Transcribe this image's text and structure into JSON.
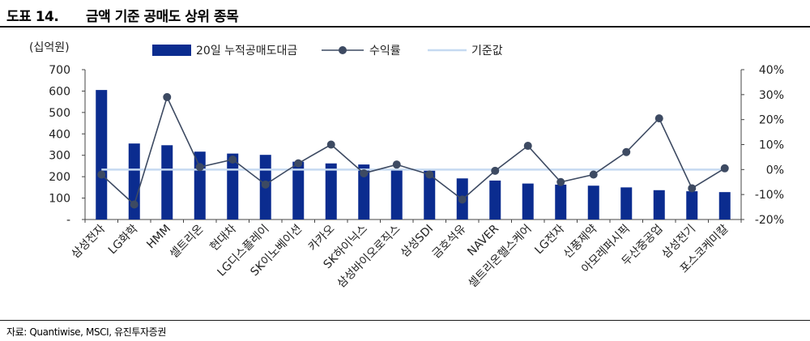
{
  "figure": {
    "number": "도표 14.",
    "title": "금액 기준 공매도 상위 종목",
    "source": "자료: Quantiwise, MSCI, 유진투자증권"
  },
  "chart_data": {
    "type": "bar+line",
    "y_left_unit": "(십억원)",
    "y_left_ticks": [
      "-",
      "100",
      "200",
      "300",
      "400",
      "500",
      "600",
      "700"
    ],
    "y_left_range": [
      0,
      700
    ],
    "y_right_ticks": [
      "-20%",
      "-10%",
      "0%",
      "10%",
      "20%",
      "30%",
      "40%"
    ],
    "y_right_range": [
      -20,
      40
    ],
    "categories": [
      "삼성전자",
      "LG화학",
      "HMM",
      "셀트리온",
      "현대차",
      "LG디스플레이",
      "SK이노베이션",
      "카카오",
      "SK하이닉스",
      "삼성바이오로직스",
      "삼성SDI",
      "금호석유",
      "NAVER",
      "셀트리온헬스케어",
      "LG전자",
      "신풍제약",
      "아모레퍼시픽",
      "두산중공업",
      "삼성전기",
      "포스코케미칼"
    ],
    "series": [
      {
        "name": "20일 누적공매도대금",
        "kind": "bar",
        "axis": "left",
        "color": "#0b2c8f",
        "values": [
          605,
          355,
          347,
          317,
          308,
          302,
          270,
          262,
          257,
          230,
          228,
          192,
          182,
          168,
          163,
          158,
          150,
          137,
          132,
          128
        ]
      },
      {
        "name": "수익률",
        "kind": "line",
        "axis": "right",
        "color": "#3d4a62",
        "values": [
          -2,
          -14,
          29,
          1,
          4,
          -6,
          2.5,
          10,
          -1.5,
          2,
          -2,
          -12,
          -0.5,
          9.5,
          -5,
          -2,
          7,
          20.5,
          -7.5,
          0.5
        ]
      },
      {
        "name": "기준값",
        "kind": "line",
        "axis": "right",
        "color": "#c5d9f1",
        "values": [
          0,
          0,
          0,
          0,
          0,
          0,
          0,
          0,
          0,
          0,
          0,
          0,
          0,
          0,
          0,
          0,
          0,
          0,
          0,
          0
        ]
      }
    ],
    "legend_position": "top"
  }
}
